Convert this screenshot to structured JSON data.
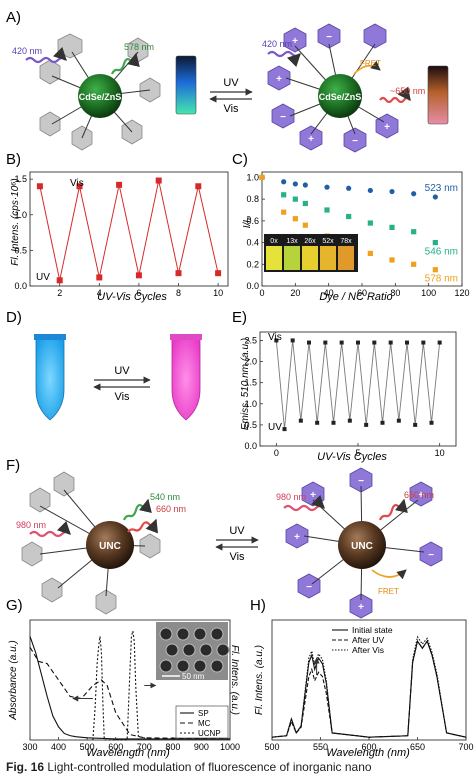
{
  "panels": {
    "A": "A)",
    "B": "B)",
    "C": "C)",
    "D": "D)",
    "E": "E)",
    "F": "F)",
    "G": "G)",
    "H": "H)"
  },
  "panelA": {
    "core_label": "CdSe/ZnS",
    "excitation": "420 nm",
    "emission_left": "578 nm",
    "emission_right": "~650 nm",
    "fret": "FRET",
    "forward": "UV",
    "backward": "Vis"
  },
  "panelB": {
    "ylabel": "Fl. Intens. (cps·10⁶)",
    "xlabel": "UV-Vis Cycles",
    "annot_vis": "Vis",
    "annot_uv": "UV"
  },
  "panelC": {
    "ylabel": "I/I₀",
    "xlabel": "Dye / NC Ratio",
    "inset_labels": [
      "0x",
      "13x",
      "26x",
      "52x",
      "78x"
    ]
  },
  "panelD": {
    "forward": "UV",
    "backward": "Vis"
  },
  "panelE": {
    "ylabel": "Emiss. 510 nm (a.u.)",
    "xlabel": "UV-Vis Cycles",
    "annot_vis": "Vis",
    "annot_uv": "UV"
  },
  "panelF": {
    "core_label": "UNC",
    "excitation": "980 nm",
    "emission_green": "540 nm",
    "emission_red": "660 nm",
    "emission_right": "660 nm",
    "excitation_right": "980 nm",
    "fret": "FRET",
    "forward": "UV",
    "backward": "Vis"
  },
  "panelG": {
    "ylabel_left": "Absorbance (a.u.)",
    "ylabel_right": "Fl. Intens. (a.u.)",
    "xlabel": "Wavelength (nm)",
    "scale_bar": "50 nm",
    "legend": [
      "SP",
      "MC",
      "UCNP"
    ]
  },
  "panelH": {
    "ylabel": "Fl. Intens. (a.u.)",
    "xlabel": "Wavelength (nm)",
    "legend": [
      "Initial state",
      "After UV",
      "After Vis"
    ]
  },
  "caption": {
    "prefix": "Fig. 16",
    "text": "Light-controlled modulation of fluorescence of inorganic nano"
  },
  "chart_data": [
    {
      "id": "B",
      "type": "line",
      "xlabel": "UV-Vis Cycles",
      "ylabel": "Fl. Intens. (cps·10⁶)",
      "xlim": [
        0.5,
        10.5
      ],
      "ylim": [
        0,
        1.6
      ],
      "x_ticks": [
        2,
        4,
        6,
        8,
        10
      ],
      "y_ticks": [
        0.0,
        0.5,
        1.0,
        1.5
      ],
      "color": "#d62a2a",
      "series": [
        {
          "x": [
            1,
            2,
            3,
            4,
            5,
            6,
            7,
            8,
            9,
            10
          ],
          "values": [
            1.4,
            0.08,
            1.4,
            0.12,
            1.42,
            0.15,
            1.48,
            0.18,
            1.4,
            0.18
          ]
        }
      ]
    },
    {
      "id": "C",
      "type": "scatter",
      "xlabel": "Dye / NC Ratio",
      "ylabel": "I/I₀",
      "xlim": [
        0,
        120
      ],
      "ylim": [
        0,
        1.05
      ],
      "x_ticks": [
        0,
        20,
        40,
        60,
        80,
        100,
        120
      ],
      "y_ticks": [
        0.0,
        0.2,
        0.4,
        0.6,
        0.8,
        1.0
      ],
      "series": [
        {
          "name": "523 nm",
          "color": "#1f5fa8",
          "x": [
            0,
            13,
            20,
            26,
            39,
            52,
            65,
            78,
            91,
            104
          ],
          "values": [
            1.0,
            0.96,
            0.94,
            0.93,
            0.91,
            0.9,
            0.88,
            0.87,
            0.85,
            0.82
          ]
        },
        {
          "name": "546 nm",
          "color": "#27b08a",
          "x": [
            0,
            13,
            20,
            26,
            39,
            52,
            65,
            78,
            91,
            104
          ],
          "values": [
            1.0,
            0.84,
            0.8,
            0.76,
            0.7,
            0.64,
            0.58,
            0.54,
            0.5,
            0.4
          ]
        },
        {
          "name": "578 nm",
          "color": "#f0a01e",
          "x": [
            0,
            13,
            20,
            26,
            39,
            52,
            65,
            78,
            91,
            104
          ],
          "values": [
            1.0,
            0.68,
            0.62,
            0.56,
            0.46,
            0.37,
            0.3,
            0.24,
            0.2,
            0.15
          ]
        }
      ]
    },
    {
      "id": "E",
      "type": "line",
      "xlabel": "UV-Vis Cycles",
      "ylabel": "Emiss. 510 nm (a.u.)",
      "xlim": [
        -1,
        11
      ],
      "ylim": [
        0,
        2.7
      ],
      "x_ticks": [
        0,
        5,
        10
      ],
      "y_ticks": [
        0.0,
        0.5,
        1.0,
        1.5,
        2.0,
        2.5
      ],
      "color": "#7a7a7a",
      "series": [
        {
          "x": [
            0,
            0.5,
            1,
            1.5,
            2,
            2.5,
            3,
            3.5,
            4,
            4.5,
            5,
            5.5,
            6,
            6.5,
            7,
            7.5,
            8,
            8.5,
            9,
            9.5,
            10
          ],
          "values": [
            2.5,
            0.4,
            2.5,
            0.6,
            2.45,
            0.55,
            2.45,
            0.55,
            2.45,
            0.6,
            2.45,
            0.5,
            2.45,
            0.55,
            2.45,
            0.6,
            2.45,
            0.5,
            2.45,
            0.55,
            2.45
          ]
        }
      ]
    },
    {
      "id": "G",
      "type": "line",
      "xlabel": "Wavelength (nm)",
      "xlim": [
        300,
        1000
      ],
      "x_ticks": [
        300,
        400,
        500,
        600,
        700,
        800,
        900,
        1000
      ],
      "series": [
        {
          "name": "SP",
          "x": [
            300,
            320,
            340,
            360,
            380,
            400,
            420,
            440,
            460,
            500,
            600,
            700,
            1000
          ],
          "values": [
            0.95,
            0.8,
            0.6,
            0.4,
            0.22,
            0.12,
            0.06,
            0.04,
            0.03,
            0.02,
            0.01,
            0.01,
            0.01
          ]
        },
        {
          "name": "MC",
          "x": [
            300,
            330,
            360,
            400,
            440,
            480,
            520,
            550,
            570,
            600,
            650,
            700,
            1000
          ],
          "values": [
            0.85,
            0.72,
            0.7,
            0.55,
            0.4,
            0.38,
            0.5,
            0.55,
            0.5,
            0.25,
            0.05,
            0.02,
            0.01
          ]
        },
        {
          "name": "UCNP",
          "x": [
            520,
            528,
            535,
            540,
            545,
            550,
            555,
            560,
            640,
            650,
            655,
            660,
            665,
            670,
            680
          ],
          "values": [
            0.0,
            0.3,
            0.7,
            0.85,
            0.95,
            0.8,
            0.35,
            0.0,
            0.0,
            0.65,
            0.95,
            1.0,
            0.9,
            0.5,
            0.0
          ]
        }
      ]
    },
    {
      "id": "H",
      "type": "line",
      "xlabel": "Wavelength (nm)",
      "ylabel": "Fl. Intens. (a.u.)",
      "xlim": [
        500,
        700
      ],
      "x_ticks": [
        500,
        550,
        600,
        650,
        700
      ],
      "series": [
        {
          "name": "Initial state",
          "x": [
            500,
            515,
            520,
            525,
            530,
            538,
            541,
            544,
            548,
            552,
            556,
            562,
            600,
            640,
            645,
            650,
            655,
            660,
            665,
            670,
            680,
            700
          ],
          "values": [
            0.02,
            0.03,
            0.15,
            0.05,
            0.1,
            0.55,
            0.6,
            0.5,
            0.58,
            0.54,
            0.4,
            0.05,
            0.02,
            0.03,
            0.55,
            0.7,
            0.65,
            0.7,
            0.6,
            0.45,
            0.05,
            0.02
          ]
        },
        {
          "name": "After UV",
          "x": [
            500,
            515,
            520,
            525,
            530,
            538,
            541,
            544,
            548,
            552,
            556,
            562,
            600,
            640,
            645,
            650,
            655,
            660,
            665,
            670,
            680,
            700
          ],
          "values": [
            0.02,
            0.03,
            0.13,
            0.05,
            0.09,
            0.45,
            0.5,
            0.42,
            0.48,
            0.45,
            0.33,
            0.05,
            0.02,
            0.03,
            0.55,
            0.7,
            0.65,
            0.7,
            0.6,
            0.45,
            0.05,
            0.02
          ]
        },
        {
          "name": "After Vis",
          "x": [
            500,
            515,
            520,
            525,
            530,
            538,
            541,
            544,
            548,
            552,
            556,
            562,
            600,
            640,
            645,
            650,
            655,
            660,
            665,
            670,
            680,
            700
          ],
          "values": [
            0.02,
            0.03,
            0.15,
            0.05,
            0.1,
            0.58,
            0.63,
            0.53,
            0.61,
            0.57,
            0.42,
            0.05,
            0.02,
            0.03,
            0.57,
            0.73,
            0.68,
            0.72,
            0.62,
            0.47,
            0.05,
            0.02
          ]
        }
      ]
    }
  ]
}
